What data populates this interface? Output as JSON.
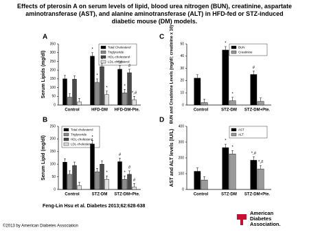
{
  "title": "Effects of pterosin A on serum levels of lipid, blood urea nitrogen (BUN), creatinine, aspartate aminotransferase (AST), and alanine aminotransferase (ALT) in HFD-fed or STZ-induced diabetic mouse (DM) models.",
  "citation": "Feng-Lin Hsu et al. Diabetes 2013;62:628-638",
  "copyright": "©2013 by American Diabetes Association",
  "logo": [
    "American",
    "Diabetes",
    "Association."
  ],
  "chart_data": [
    {
      "type": "bar",
      "panel": "A",
      "y_label": "Serum Lipids (mg/dl)",
      "categories": [
        "Control",
        "HFD-DM",
        "HFD-DM-Pte."
      ],
      "ylim": [
        0,
        350
      ],
      "yticks": [
        0,
        50,
        100,
        150,
        200,
        250,
        300,
        350
      ],
      "legend": "top-right",
      "series": [
        {
          "name": "Total Cholesterol",
          "color": "#000000",
          "values": [
            150,
            280,
            205
          ],
          "sig": [
            null,
            "*",
            "*,#"
          ]
        },
        {
          "name": "Triglyceride",
          "color": "#8c8c8c",
          "values": [
            45,
            130,
            70
          ],
          "sig": [
            null,
            "*",
            "*"
          ]
        },
        {
          "name": "HDL-cholesterol",
          "color": "#4a4a4a",
          "values": [
            148,
            220,
            185
          ],
          "sig": [
            null,
            "*",
            "#"
          ]
        },
        {
          "name": "LDL-cholesterol",
          "color": "#e0e0e0",
          "values": [
            18,
            60,
            30
          ],
          "sig": [
            null,
            "*",
            "*,#"
          ]
        }
      ]
    },
    {
      "type": "bar",
      "panel": "B",
      "y_label": "Serum Lipid (mg/dl)",
      "categories": [
        "Control",
        "STZ-DM",
        "STZ-DM+Pte."
      ],
      "ylim": [
        0,
        250
      ],
      "yticks": [
        0,
        50,
        100,
        150,
        200,
        250
      ],
      "legend": "top-left",
      "series": [
        {
          "name": "Total cholesterol",
          "color": "#000000",
          "values": [
            108,
            180,
            110
          ],
          "sig": [
            null,
            "*",
            "#"
          ]
        },
        {
          "name": "Triglyceride",
          "color": "#8c8c8c",
          "values": [
            60,
            70,
            40
          ],
          "sig": [
            null,
            null,
            "*"
          ]
        },
        {
          "name": "HDL-cholesterol",
          "color": "#4a4a4a",
          "values": [
            95,
            100,
            60
          ],
          "sig": [
            null,
            null,
            "#"
          ]
        },
        {
          "name": "LDL-cholesterol",
          "color": "#e0e0e0",
          "values": [
            15,
            40,
            10
          ],
          "sig": [
            null,
            "*",
            "#"
          ]
        }
      ]
    },
    {
      "type": "bar",
      "panel": "C",
      "y_label": "BUN and Creatinine Levels (mg/dl; creatinine x 10)",
      "categories": [
        "Control",
        "STZ-DM",
        "STZ-DM+Pte."
      ],
      "ylim": [
        0,
        50
      ],
      "yticks": [
        0,
        10,
        20,
        30,
        40,
        50
      ],
      "legend": "top-right",
      "series": [
        {
          "name": "BUN",
          "color": "#000000",
          "values": [
            22,
            45,
            25
          ],
          "sig": [
            null,
            "*",
            "#"
          ]
        },
        {
          "name": "Creatinine",
          "color": "#9a9a9a",
          "values": [
            2,
            3.5,
            3
          ],
          "sig": [
            null,
            "*",
            null
          ]
        }
      ]
    },
    {
      "type": "bar",
      "panel": "D",
      "y_label": "AST and ALT levels (IU/L)",
      "categories": [
        "Control",
        "STZ-DM",
        "STZ-DM+Pte."
      ],
      "ylim": [
        0,
        400
      ],
      "yticks": [
        0,
        100,
        200,
        300,
        400
      ],
      "legend": "top-right",
      "series": [
        {
          "name": "AST",
          "color": "#000000",
          "values": [
            115,
            265,
            185
          ],
          "sig": [
            null,
            "*",
            "*,#"
          ]
        },
        {
          "name": "ALT",
          "color": "#9a9a9a",
          "values": [
            60,
            225,
            130
          ],
          "sig": [
            null,
            "*",
            "*,#"
          ]
        }
      ]
    }
  ]
}
